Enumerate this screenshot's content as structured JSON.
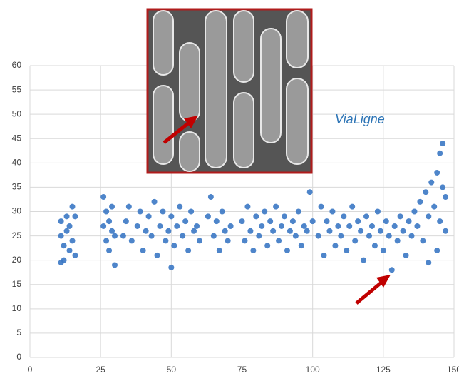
{
  "chart_data": {
    "type": "scatter",
    "annotation": "ViaLigne",
    "color": "#3b78c4",
    "x": [
      11,
      11,
      12,
      12,
      13,
      13,
      14,
      14,
      15,
      15,
      16,
      16,
      11,
      26,
      26,
      27,
      27,
      28,
      28,
      29,
      29,
      30,
      30,
      33,
      34,
      35,
      36,
      38,
      39,
      40,
      41,
      42,
      43,
      44,
      45,
      46,
      47,
      48,
      49,
      50,
      50,
      51,
      52,
      53,
      54,
      55,
      56,
      57,
      58,
      59,
      60,
      63,
      64,
      65,
      66,
      67,
      68,
      69,
      70,
      71,
      75,
      76,
      77,
      78,
      79,
      80,
      81,
      82,
      83,
      84,
      85,
      86,
      87,
      88,
      89,
      90,
      91,
      92,
      93,
      94,
      95,
      96,
      97,
      98,
      99,
      100,
      102,
      103,
      104,
      105,
      106,
      107,
      108,
      109,
      110,
      111,
      112,
      113,
      114,
      115,
      116,
      117,
      118,
      119,
      120,
      121,
      122,
      123,
      124,
      125,
      126,
      127,
      128,
      129,
      130,
      131,
      132,
      133,
      134,
      135,
      136,
      137,
      138,
      139,
      140,
      141,
      142,
      143,
      144,
      145,
      145,
      146,
      146,
      147,
      147,
      144,
      141
    ],
    "values": [
      25,
      28,
      20,
      23,
      26,
      29,
      22,
      27,
      31,
      24,
      21,
      29,
      19.5,
      33,
      27,
      24,
      30,
      22,
      28,
      26,
      31,
      25,
      19,
      25,
      28,
      31,
      24,
      27,
      30,
      22,
      26,
      29,
      25,
      32,
      21,
      27,
      30,
      24,
      26,
      18.5,
      29,
      23,
      27,
      31,
      25,
      28,
      22,
      30,
      26,
      27,
      24,
      29,
      33,
      25,
      28,
      22,
      30,
      26,
      24,
      27,
      28,
      24,
      31,
      26,
      22,
      29,
      25,
      27,
      30,
      23,
      28,
      26,
      31,
      24,
      27,
      29,
      22,
      26,
      28,
      25,
      30,
      23,
      27,
      26,
      34,
      28,
      25,
      31,
      21,
      28,
      26,
      30,
      23,
      27,
      25,
      29,
      22,
      27,
      31,
      24,
      28,
      26,
      20,
      29,
      25,
      27,
      23,
      30,
      26,
      22,
      28,
      25,
      18,
      27,
      24,
      29,
      26,
      21,
      28,
      25,
      30,
      27,
      32,
      24,
      34,
      29,
      36,
      31,
      38,
      28,
      42,
      44,
      35,
      33,
      26,
      22,
      19.5
    ],
    "xlim": [
      0,
      150
    ],
    "ylim": [
      0,
      60
    ],
    "xticks": [
      0,
      25,
      50,
      75,
      100,
      125,
      150
    ],
    "yticks": [
      0,
      5,
      10,
      15,
      20,
      25,
      30,
      35,
      40,
      45,
      50,
      55,
      60
    ],
    "grid": true
  }
}
